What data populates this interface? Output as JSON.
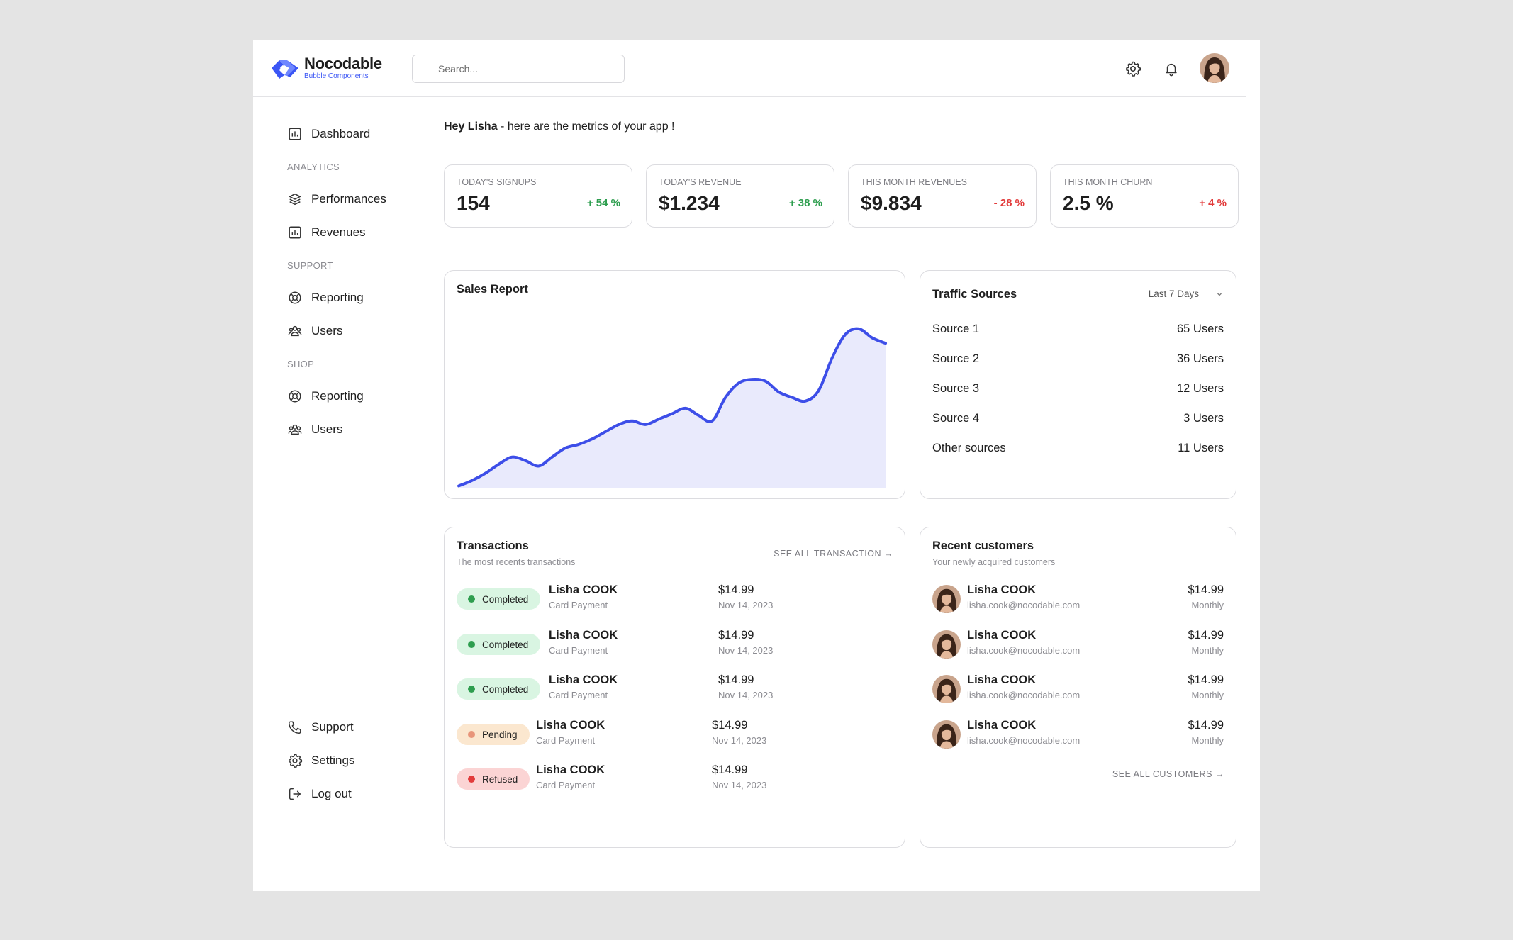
{
  "brand": {
    "name": "Nocodable",
    "tagline": "Bubble Components",
    "accent": "#3b56f5"
  },
  "header": {
    "search_placeholder": "Search...",
    "icons": [
      "gear-icon",
      "bell-icon"
    ]
  },
  "sidebar": {
    "dashboard": "Dashboard",
    "sections": {
      "analytics": "ANALYTICS",
      "support": "SUPPORT",
      "shop": "SHOP"
    },
    "analytics_items": [
      "Performances",
      "Revenues"
    ],
    "support_items": [
      "Reporting",
      "Users"
    ],
    "shop_items": [
      "Reporting",
      "Users"
    ],
    "bottom_items": [
      "Support",
      "Settings",
      "Log out"
    ]
  },
  "greeting": {
    "name": "Hey Lisha",
    "rest": " - here are the metrics of your app !"
  },
  "stats": [
    {
      "label": "TODAY'S SIGNUPS",
      "value": "154",
      "delta": "+ 54 %",
      "trend": "up"
    },
    {
      "label": "TODAY'S REVENUE",
      "value": "$1.234",
      "delta": "+ 38 %",
      "trend": "up"
    },
    {
      "label": "THIS MONTH REVENUES",
      "value": "$9.834",
      "delta": "- 28 %",
      "trend": "down"
    },
    {
      "label": "THIS MONTH CHURN",
      "value": "2.5 %",
      "delta": "+ 4 %",
      "trend": "down"
    }
  ],
  "sales_report": {
    "title": "Sales Report",
    "line_color": "#3d4ee8",
    "fill_color": "#e9eafc"
  },
  "chart_data": {
    "type": "area",
    "title": "Sales Report",
    "xlabel": "",
    "ylabel": "",
    "grid": false,
    "x": [
      0,
      1,
      2,
      3,
      4,
      5,
      6,
      7,
      8,
      9,
      10,
      11,
      12,
      13,
      14,
      15,
      16,
      17,
      18,
      19,
      20,
      21,
      22,
      23,
      24,
      25,
      26,
      27,
      28,
      29,
      30,
      31,
      32
    ],
    "series": [
      {
        "values": [
          1,
          4,
          8,
          13,
          17,
          15,
          12,
          17,
          22,
          24,
          27,
          31,
          35,
          37,
          35,
          38,
          41,
          44,
          40,
          37,
          50,
          58,
          60,
          59,
          53,
          50,
          48,
          54,
          72,
          85,
          88,
          83,
          80
        ]
      }
    ],
    "ylim": [
      0,
      95
    ]
  },
  "traffic": {
    "title": "Traffic Sources",
    "range": "Last 7 Days",
    "rows": [
      {
        "source": "Source 1",
        "users": "65 Users"
      },
      {
        "source": "Source 2",
        "users": "36 Users"
      },
      {
        "source": "Source 3",
        "users": "12 Users"
      },
      {
        "source": "Source 4",
        "users": "3 Users"
      },
      {
        "source": "Other sources",
        "users": "11 Users"
      }
    ]
  },
  "transactions": {
    "title": "Transactions",
    "subtitle": "The most recents transactions",
    "see_all": "SEE ALL TRANSACTION →",
    "rows": [
      {
        "status": "Completed",
        "status_color": "#d9f5e2",
        "dot": "#2e9e4f",
        "name": "Lisha COOK",
        "method": "Card Payment",
        "amount": "$14.99",
        "date": "Nov 14, 2023"
      },
      {
        "status": "Completed",
        "status_color": "#d9f5e2",
        "dot": "#2e9e4f",
        "name": "Lisha COOK",
        "method": "Card Payment",
        "amount": "$14.99",
        "date": "Nov 14, 2023"
      },
      {
        "status": "Completed",
        "status_color": "#d9f5e2",
        "dot": "#2e9e4f",
        "name": "Lisha COOK",
        "method": "Card Payment",
        "amount": "$14.99",
        "date": "Nov 14, 2023"
      },
      {
        "status": "Pending",
        "status_color": "#fbe7cf",
        "dot": "#e8957a",
        "name": "Lisha COOK",
        "method": "Card Payment",
        "amount": "$14.99",
        "date": "Nov 14, 2023"
      },
      {
        "status": "Refused",
        "status_color": "#fbd4d4",
        "dot": "#e23b3b",
        "name": "Lisha COOK",
        "method": "Card Payment",
        "amount": "$14.99",
        "date": "Nov 14, 2023"
      }
    ]
  },
  "customers": {
    "title": "Recent customers",
    "subtitle": "Your newly acquired customers",
    "see_all": "SEE ALL CUSTOMERS →",
    "rows": [
      {
        "name": "Lisha COOK",
        "email": "lisha.cook@nocodable.com",
        "price": "$14.99",
        "plan": "Monthly"
      },
      {
        "name": "Lisha COOK",
        "email": "lisha.cook@nocodable.com",
        "price": "$14.99",
        "plan": "Monthly"
      },
      {
        "name": "Lisha COOK",
        "email": "lisha.cook@nocodable.com",
        "price": "$14.99",
        "plan": "Monthly"
      },
      {
        "name": "Lisha COOK",
        "email": "lisha.cook@nocodable.com",
        "price": "$14.99",
        "plan": "Monthly"
      }
    ]
  }
}
